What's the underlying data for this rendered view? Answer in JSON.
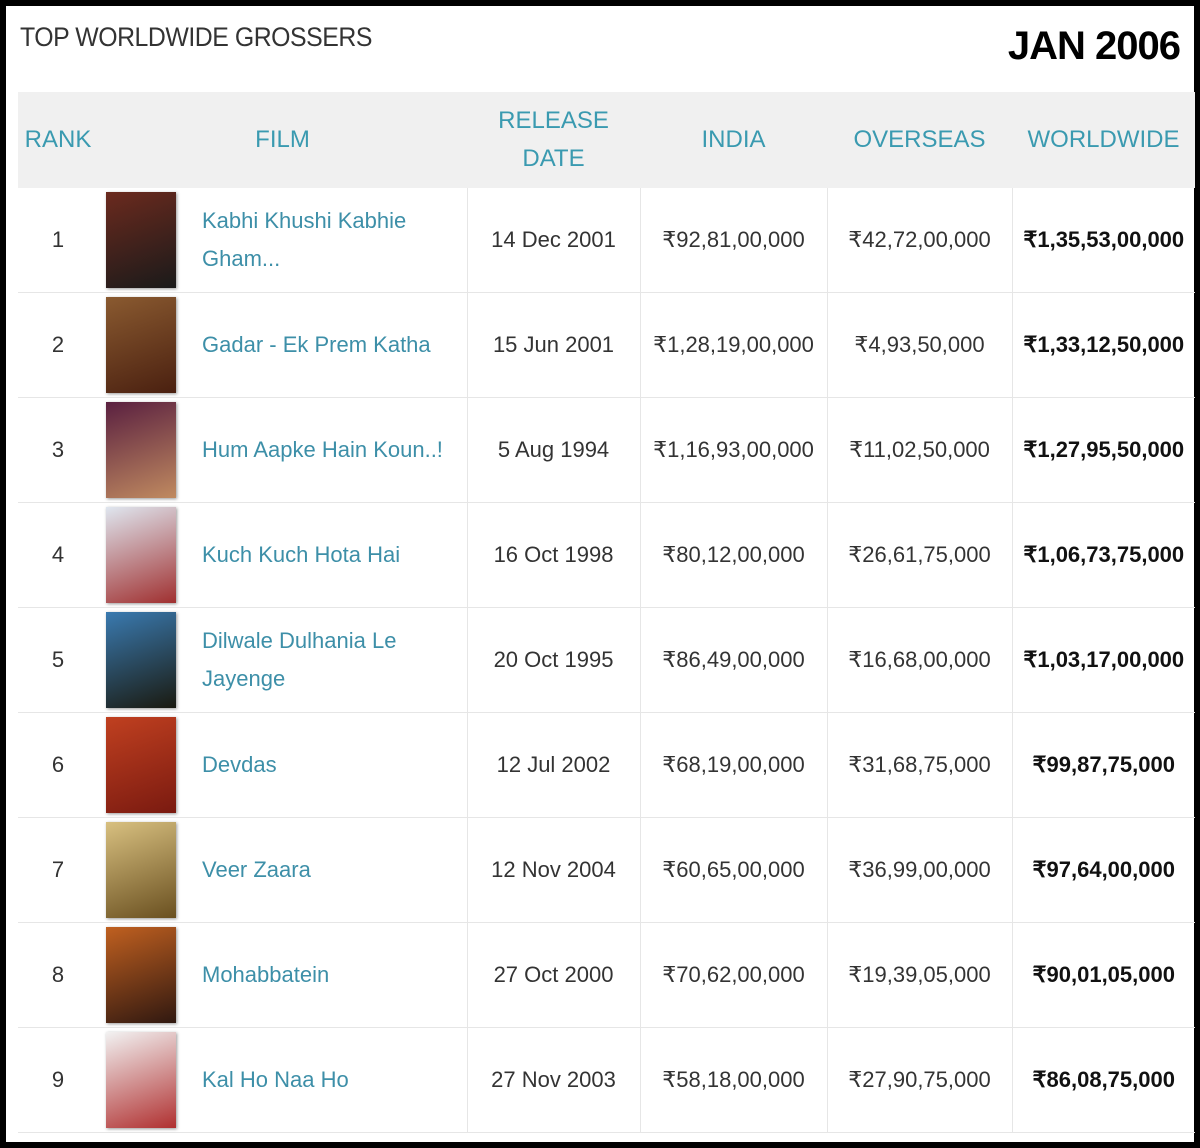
{
  "header": {
    "title": "TOP WORLDWIDE GROSSERS",
    "date": "JAN 2006"
  },
  "table": {
    "columns": [
      "RANK",
      "FILM",
      "RELEASE DATE",
      "INDIA",
      "OVERSEAS",
      "WORLDWIDE"
    ],
    "rows": [
      [
        1,
        "Kabhi Khushi Kabhie Gham...",
        "14 Dec 2001",
        "₹92,81,00,000",
        "₹42,72,00,000",
        "₹1,35,53,00,000"
      ],
      [
        2,
        "Gadar - Ek Prem Katha",
        "15 Jun 2001",
        "₹1,28,19,00,000",
        "₹4,93,50,000",
        "₹1,33,12,50,000"
      ],
      [
        3,
        "Hum Aapke Hain Koun..!",
        "5 Aug 1994",
        "₹1,16,93,00,000",
        "₹11,02,50,000",
        "₹1,27,95,50,000"
      ],
      [
        4,
        "Kuch Kuch Hota Hai",
        "16 Oct 1998",
        "₹80,12,00,000",
        "₹26,61,75,000",
        "₹1,06,73,75,000"
      ],
      [
        5,
        "Dilwale Dulhania Le Jayenge",
        "20 Oct 1995",
        "₹86,49,00,000",
        "₹16,68,00,000",
        "₹1,03,17,00,000"
      ],
      [
        6,
        "Devdas",
        "12 Jul 2002",
        "₹68,19,00,000",
        "₹31,68,75,000",
        "₹99,87,75,000"
      ],
      [
        7,
        "Veer Zaara",
        "12 Nov 2004",
        "₹60,65,00,000",
        "₹36,99,00,000",
        "₹97,64,00,000"
      ],
      [
        8,
        "Mohabbatein",
        "27 Oct 2000",
        "₹70,62,00,000",
        "₹19,39,05,000",
        "₹90,01,05,000"
      ],
      [
        9,
        "Kal Ho Naa Ho",
        "27 Nov 2003",
        "₹58,18,00,000",
        "₹27,90,75,000",
        "₹86,08,75,000"
      ]
    ]
  }
}
